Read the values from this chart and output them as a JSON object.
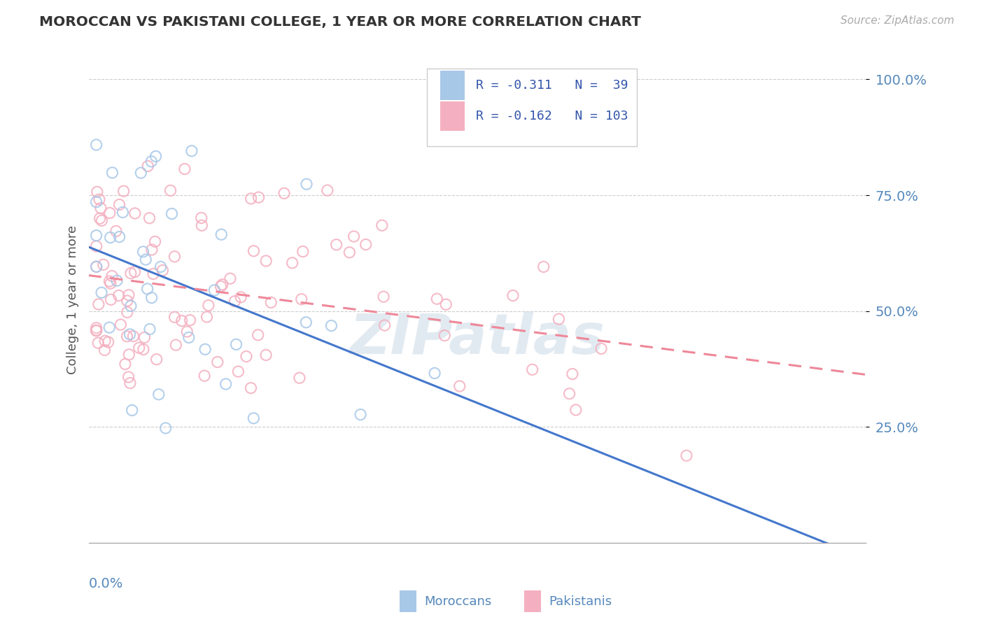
{
  "title": "MOROCCAN VS PAKISTANI COLLEGE, 1 YEAR OR MORE CORRELATION CHART",
  "source": "Source: ZipAtlas.com",
  "ylabel": "College, 1 year or more",
  "xlim": [
    0.0,
    0.3
  ],
  "ylim": [
    0.0,
    1.05
  ],
  "moroccan_R": -0.311,
  "moroccan_N": 39,
  "pakistani_R": -0.162,
  "pakistani_N": 103,
  "moroccan_color": "#a8c8e8",
  "pakistani_color": "#f4b0c0",
  "moroccan_line_color": "#4477cc",
  "pakistani_line_color": "#ee8899",
  "background_color": "#ffffff",
  "grid_color": "#cccccc",
  "title_color": "#333333",
  "axis_label_color": "#5588bb",
  "legend_text_color": "#3355aa",
  "watermark_color": "#d0dce8",
  "watermark_text": "ZIPatlas"
}
